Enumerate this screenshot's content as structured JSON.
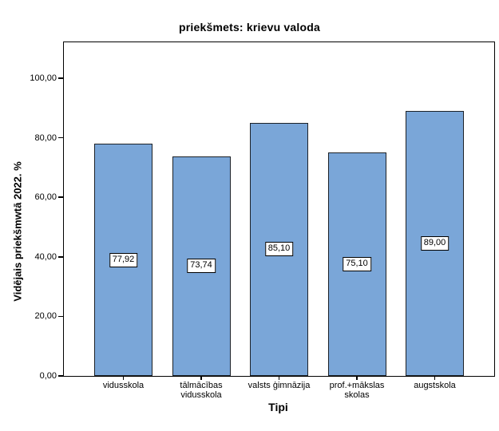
{
  "figure": {
    "title": "priekšmets: krievu valoda"
  },
  "chart_data": {
    "type": "bar",
    "title": "priekšmets: krievu valoda",
    "xlabel": "Tipi",
    "ylabel": "Vidējais priekšmwtā 2022. %",
    "categories": [
      "vidusskola",
      "tālmācības\nvidusskola",
      "valsts ģimnāzija",
      "prof.+mākslas\nskolas",
      "augstskola"
    ],
    "values": [
      77.92,
      73.74,
      85.1,
      75.1,
      89.0
    ],
    "value_labels": [
      "77,92",
      "73,74",
      "85,10",
      "75,10",
      "89,00"
    ],
    "y_ticks": [
      {
        "value": 0,
        "label": "0,00"
      },
      {
        "value": 20,
        "label": "20,00"
      },
      {
        "value": 40,
        "label": "40,00"
      },
      {
        "value": 60,
        "label": "60,00"
      },
      {
        "value": 80,
        "label": "80,00"
      },
      {
        "value": 100,
        "label": "100,00"
      }
    ],
    "ylim": [
      0,
      112
    ],
    "grid": false,
    "legend": "none",
    "value_label_position": "middle-of-bar",
    "colors": {
      "bar_fill": "#7AA6D8",
      "bar_border": "#1C2127",
      "frame": "#000000",
      "text": "#000000",
      "background": "#FFFFFF"
    }
  }
}
